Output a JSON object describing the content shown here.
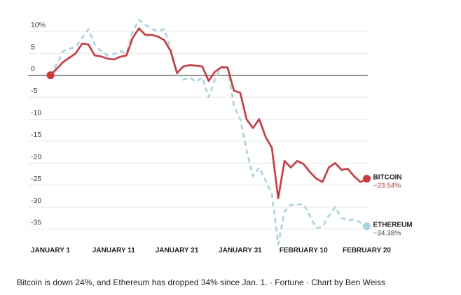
{
  "chart_data": {
    "type": "line",
    "categories": [
      "JANUARY 1",
      null,
      null,
      null,
      null,
      null,
      null,
      null,
      null,
      null,
      "JANUARY 11",
      null,
      null,
      null,
      null,
      null,
      null,
      null,
      null,
      null,
      "JANUARY 21",
      null,
      null,
      null,
      null,
      null,
      null,
      null,
      null,
      null,
      "JANUARY 31",
      null,
      null,
      null,
      null,
      null,
      null,
      null,
      null,
      null,
      "FEBRUARY 10",
      null,
      null,
      null,
      null,
      null,
      null,
      null,
      null,
      null,
      "FEBRUARY 20"
    ],
    "series": [
      {
        "name": "BITCOIN",
        "color": "#d0363a",
        "style": "solid",
        "end_value_label": "−23.54%",
        "values": [
          0,
          1.5,
          3,
          4,
          5,
          7.2,
          7,
          4.5,
          4.3,
          3.8,
          3.6,
          4.2,
          4.5,
          8.5,
          10.7,
          9.2,
          9.2,
          8.8,
          8,
          5.5,
          0.5,
          2,
          2.3,
          2.2,
          2,
          -1.3,
          0.8,
          1.8,
          1.8,
          -3.5,
          -4,
          -10,
          -12,
          -10,
          -14,
          -16.5,
          -28,
          -19.5,
          -21,
          -19.5,
          -20.2,
          -22,
          -23.5,
          -24.3,
          -21,
          -20,
          -21.5,
          -21.3,
          -23,
          -24.3,
          -23.54
        ]
      },
      {
        "name": "ETHEREUM",
        "color": "#a9d3e3",
        "style": "dashed",
        "end_value_label": "−34.38%",
        "values": [
          0,
          2.5,
          5.5,
          6,
          6.5,
          8.5,
          10.5,
          7,
          5.5,
          4.5,
          4.8,
          5.5,
          5,
          10,
          12.6,
          11.5,
          10.5,
          10,
          10.5,
          6,
          0.5,
          -1,
          -0.5,
          -1.5,
          -0.5,
          -5,
          -1,
          2,
          1.8,
          -7,
          -10,
          -17,
          -23,
          -21,
          -24,
          -27,
          -38.5,
          -31,
          -29.5,
          -29.5,
          -29.3,
          -32,
          -34.8,
          -34.5,
          -32,
          -30,
          -32.5,
          -33,
          -32.8,
          -33.5,
          -34.38
        ]
      }
    ],
    "ylim": [
      -40,
      13
    ],
    "yticks": [
      {
        "value": 10,
        "label": "10%"
      },
      5,
      0,
      -5,
      -10,
      -15,
      -20,
      -25,
      -30,
      -35
    ],
    "grid": true,
    "zero_line": true,
    "caption": "Bitcoin is down 24%, and Ethereum has dropped 34% since Jan. 1.  ·  Fortune  ·  Chart by Ben Weiss"
  }
}
